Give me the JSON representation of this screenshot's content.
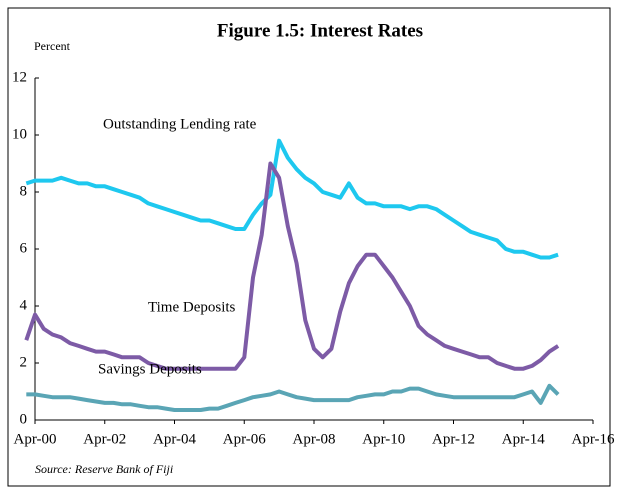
{
  "chart_data": {
    "type": "line",
    "title": "Figure 1.5: Interest Rates",
    "y_label": "Percent",
    "source": "Source:  Reserve Bank of Fiji",
    "x": [
      "Jan-00",
      "Apr-00",
      "Jul-00",
      "Oct-00",
      "Jan-01",
      "Apr-01",
      "Jul-01",
      "Oct-01",
      "Jan-02",
      "Apr-02",
      "Jul-02",
      "Oct-02",
      "Jan-03",
      "Apr-03",
      "Jul-03",
      "Oct-03",
      "Jan-04",
      "Apr-04",
      "Jul-04",
      "Oct-04",
      "Jan-05",
      "Apr-05",
      "Jul-05",
      "Oct-05",
      "Jan-06",
      "Apr-06",
      "Jul-06",
      "Oct-06",
      "Jan-07",
      "Apr-07",
      "Jul-07",
      "Oct-07",
      "Jan-08",
      "Apr-08",
      "Jul-08",
      "Oct-08",
      "Jan-09",
      "Apr-09",
      "Jul-09",
      "Oct-09",
      "Jan-10",
      "Apr-10",
      "Jul-10",
      "Oct-10",
      "Jan-11",
      "Apr-11",
      "Jul-11",
      "Oct-11",
      "Jan-12",
      "Apr-12",
      "Jul-12",
      "Oct-12",
      "Jan-13",
      "Apr-13",
      "Jul-13",
      "Oct-13",
      "Jan-14",
      "Apr-14",
      "Jul-14",
      "Oct-14",
      "Jan-15",
      "Apr-15"
    ],
    "series": [
      {
        "name": "Outstanding Lending rate",
        "color": "#1ec8ef",
        "values": [
          8.3,
          8.4,
          8.4,
          8.4,
          8.5,
          8.4,
          8.3,
          8.3,
          8.2,
          8.2,
          8.1,
          8.0,
          7.9,
          7.8,
          7.6,
          7.5,
          7.4,
          7.3,
          7.2,
          7.1,
          7.0,
          7.0,
          6.9,
          6.8,
          6.7,
          6.7,
          7.2,
          7.6,
          7.9,
          9.8,
          9.2,
          8.8,
          8.5,
          8.3,
          8.0,
          7.9,
          7.8,
          8.3,
          7.8,
          7.6,
          7.6,
          7.5,
          7.5,
          7.5,
          7.4,
          7.5,
          7.5,
          7.4,
          7.2,
          7.0,
          6.8,
          6.6,
          6.5,
          6.4,
          6.3,
          6.0,
          5.9,
          5.9,
          5.8,
          5.7,
          5.7,
          5.8
        ]
      },
      {
        "name": "Time Deposits",
        "color": "#7d5ba6",
        "values": [
          2.8,
          3.7,
          3.2,
          3.0,
          2.9,
          2.7,
          2.6,
          2.5,
          2.4,
          2.4,
          2.3,
          2.2,
          2.2,
          2.2,
          2.0,
          1.9,
          1.8,
          1.8,
          1.8,
          1.8,
          1.8,
          1.8,
          1.8,
          1.8,
          1.8,
          2.2,
          5.0,
          6.5,
          9.0,
          8.5,
          6.8,
          5.5,
          3.5,
          2.5,
          2.2,
          2.5,
          3.8,
          4.8,
          5.4,
          5.8,
          5.8,
          5.4,
          5.0,
          4.5,
          4.0,
          3.3,
          3.0,
          2.8,
          2.6,
          2.5,
          2.4,
          2.3,
          2.2,
          2.2,
          2.0,
          1.9,
          1.8,
          1.8,
          1.9,
          2.1,
          2.4,
          2.6
        ]
      },
      {
        "name": "Savings Deposits",
        "color": "#5aa5b5",
        "values": [
          0.9,
          0.9,
          0.85,
          0.8,
          0.8,
          0.8,
          0.75,
          0.7,
          0.65,
          0.6,
          0.6,
          0.55,
          0.55,
          0.5,
          0.45,
          0.45,
          0.4,
          0.35,
          0.35,
          0.35,
          0.35,
          0.4,
          0.4,
          0.5,
          0.6,
          0.7,
          0.8,
          0.85,
          0.9,
          1.0,
          0.9,
          0.8,
          0.75,
          0.7,
          0.7,
          0.7,
          0.7,
          0.7,
          0.8,
          0.85,
          0.9,
          0.9,
          1.0,
          1.0,
          1.1,
          1.1,
          1.0,
          0.9,
          0.85,
          0.8,
          0.8,
          0.8,
          0.8,
          0.8,
          0.8,
          0.8,
          0.8,
          0.9,
          1.0,
          0.6,
          1.2,
          0.9
        ]
      }
    ],
    "xlim": [
      "Apr-00",
      "Apr-16"
    ],
    "xticks": [
      "Apr-00",
      "Apr-02",
      "Apr-04",
      "Apr-06",
      "Apr-08",
      "Apr-10",
      "Apr-12",
      "Apr-14",
      "Apr-16"
    ],
    "ylim": [
      0,
      12
    ],
    "yticks": [
      0,
      2,
      4,
      6,
      8,
      10,
      12
    ],
    "grid": false
  }
}
